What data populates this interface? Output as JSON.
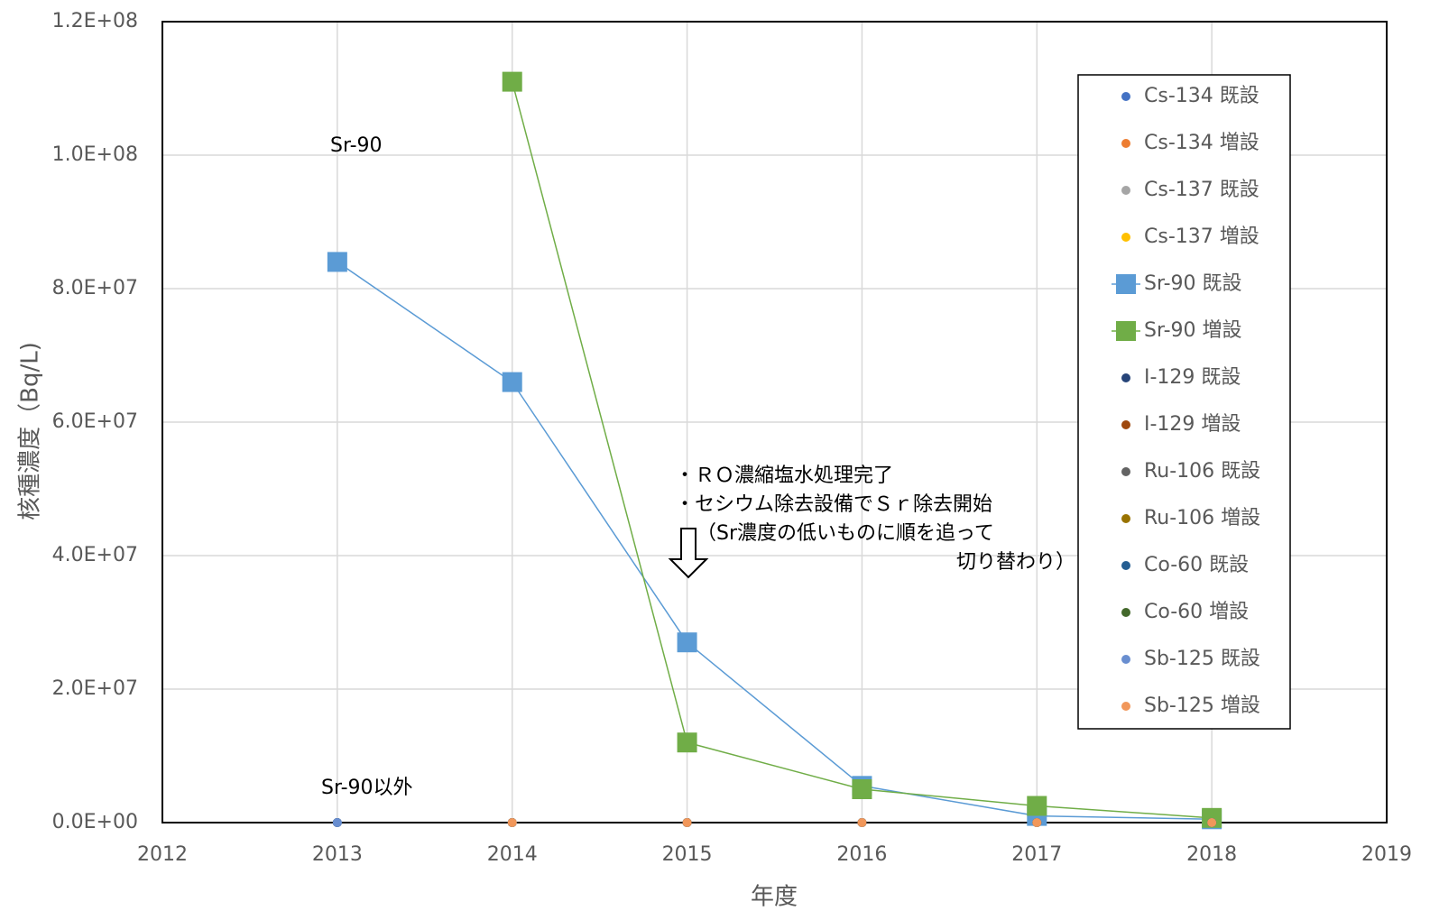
{
  "chart_data": {
    "type": "line",
    "x_label": "年度",
    "y_label": "核種濃度（Bq/L)",
    "x": [
      2013,
      2014,
      2015,
      2016,
      2017,
      2018
    ],
    "xlim": [
      2012,
      2019
    ],
    "xticks": [
      2012,
      2013,
      2014,
      2015,
      2016,
      2017,
      2018,
      2019
    ],
    "ylim": [
      0,
      120000000
    ],
    "yticks": [
      {
        "value": 0,
        "label": "0.0E+00"
      },
      {
        "value": 20000000,
        "label": "2.0E+07"
      },
      {
        "value": 40000000,
        "label": "4.0E+07"
      },
      {
        "value": 60000000,
        "label": "6.0E+07"
      },
      {
        "value": 80000000,
        "label": "8.0E+07"
      },
      {
        "value": 100000000,
        "label": "1.0E+08"
      },
      {
        "value": 120000000,
        "label": "1.2E+08"
      }
    ],
    "grid": true,
    "legend": "right",
    "annotations": [
      "Sr-90",
      "Sr-90以外",
      "・ＲＯ濃縮塩水処理完了",
      "・セシウム除去設備でＳｒ除去開始",
      "（Sr濃度の低いものに順を追って",
      "切り替わり）"
    ],
    "series": [
      {
        "name": "Cs-134 既設",
        "color": "#4472c4",
        "marker": "circle",
        "values": [
          0,
          0,
          0,
          0,
          0,
          0
        ]
      },
      {
        "name": "Cs-134 増設",
        "color": "#ed7d31",
        "marker": "circle",
        "values": [
          null,
          0,
          0,
          0,
          0,
          0
        ]
      },
      {
        "name": "Cs-137 既設",
        "color": "#a5a5a5",
        "marker": "circle",
        "values": [
          0,
          0,
          0,
          0,
          0,
          0
        ]
      },
      {
        "name": "Cs-137 増設",
        "color": "#ffc000",
        "marker": "circle",
        "values": [
          null,
          0,
          0,
          0,
          0,
          0
        ]
      },
      {
        "name": "Sr-90 既設",
        "color": "#5b9bd5",
        "marker": "square",
        "values": [
          84000000,
          66000000,
          27000000,
          5500000,
          1000000,
          500000
        ]
      },
      {
        "name": "Sr-90 増設",
        "color": "#70ad47",
        "marker": "square",
        "values": [
          null,
          111000000,
          12000000,
          5000000,
          2500000,
          700000
        ]
      },
      {
        "name": "I-129 既設",
        "color": "#264478",
        "marker": "circle",
        "values": [
          0,
          0,
          0,
          0,
          0,
          0
        ]
      },
      {
        "name": "I-129 増設",
        "color": "#9e480e",
        "marker": "circle",
        "values": [
          null,
          0,
          0,
          0,
          0,
          0
        ]
      },
      {
        "name": "Ru-106 既設",
        "color": "#636363",
        "marker": "circle",
        "values": [
          0,
          0,
          0,
          0,
          0,
          0
        ]
      },
      {
        "name": "Ru-106 増設",
        "color": "#997300",
        "marker": "circle",
        "values": [
          null,
          0,
          0,
          0,
          0,
          0
        ]
      },
      {
        "name": "Co-60 既設",
        "color": "#255e91",
        "marker": "circle",
        "values": [
          0,
          0,
          0,
          0,
          0,
          0
        ]
      },
      {
        "name": "Co-60 増設",
        "color": "#43682b",
        "marker": "circle",
        "values": [
          null,
          0,
          0,
          0,
          0,
          0
        ]
      },
      {
        "name": "Sb-125 既設",
        "color": "#698ed0",
        "marker": "circle",
        "values": [
          0,
          0,
          0,
          0,
          0,
          0
        ]
      },
      {
        "name": "Sb-125 増設",
        "color": "#f1975a",
        "marker": "circle",
        "values": [
          null,
          0,
          0,
          0,
          0,
          0
        ]
      }
    ]
  }
}
